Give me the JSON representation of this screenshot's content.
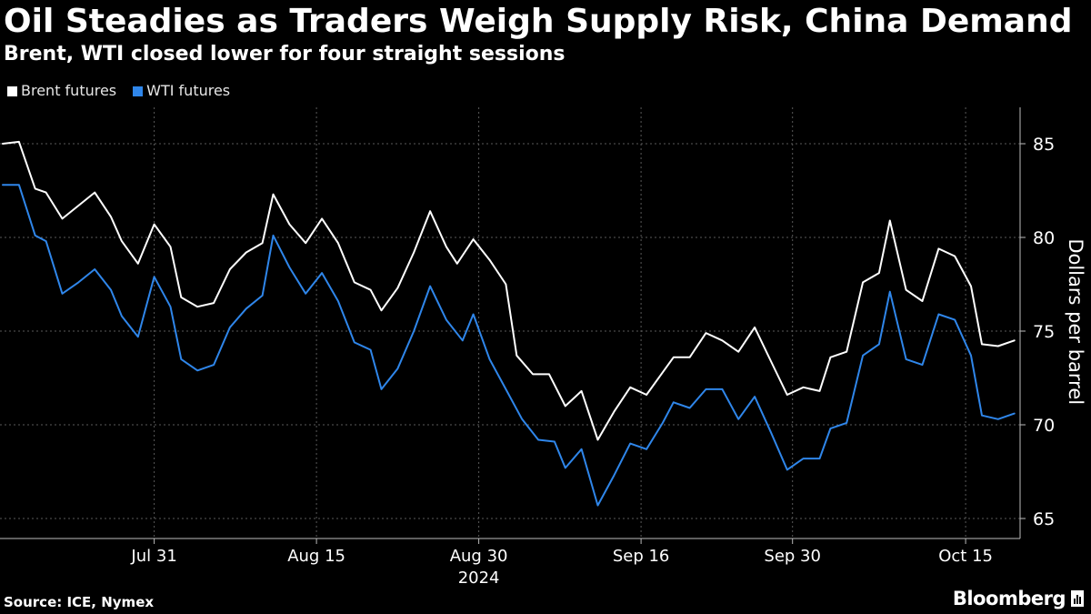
{
  "header": {
    "title": "Oil Steadies as Traders Weigh Supply Risk, China Demand",
    "subtitle": "Brent, WTI closed lower for four straight sessions"
  },
  "legend": [
    {
      "label": "Brent futures",
      "color": "#ffffff"
    },
    {
      "label": "WTI futures",
      "color": "#2f86ea"
    }
  ],
  "footer": {
    "source": "Source: ICE, Nymex",
    "brand": "Bloomberg"
  },
  "colors": {
    "background": "#000000",
    "grid": "#5a5a5a",
    "brent": "#ffffff",
    "wti": "#2f86ea"
  },
  "chart_data": {
    "type": "line",
    "title": "Oil Steadies as Traders Weigh Supply Risk, China Demand",
    "subtitle": "Brent, WTI closed lower for four straight sessions",
    "xlabel": "",
    "ylabel": "Dollars per barrel",
    "ylim": [
      64,
      87
    ],
    "y_ticks": [
      65,
      70,
      75,
      80,
      85
    ],
    "x_tick_labels": [
      "Jul 31",
      "Aug 15",
      "Aug 30",
      "Sep 16",
      "Sep 30",
      "Oct 15"
    ],
    "x_tick_index": [
      14,
      29,
      44,
      59,
      73,
      89
    ],
    "x_year_label": "2024",
    "x_year_index": 44,
    "x_count": 93,
    "grid": true,
    "legend_position": "top-left",
    "series": [
      {
        "name": "Brent futures",
        "color": "#ffffff",
        "points": [
          [
            0,
            85.0
          ],
          [
            1.5,
            85.1
          ],
          [
            3,
            82.6
          ],
          [
            4,
            82.4
          ],
          [
            5.5,
            81.0
          ],
          [
            8.5,
            82.4
          ],
          [
            10,
            81.1
          ],
          [
            11,
            79.8
          ],
          [
            12.5,
            78.6
          ],
          [
            14,
            80.7
          ],
          [
            15.5,
            79.5
          ],
          [
            16.5,
            76.8
          ],
          [
            18,
            76.3
          ],
          [
            19.5,
            76.5
          ],
          [
            21,
            78.3
          ],
          [
            22.5,
            79.2
          ],
          [
            24,
            79.7
          ],
          [
            25,
            82.3
          ],
          [
            26.5,
            80.7
          ],
          [
            28,
            79.7
          ],
          [
            29.5,
            81.0
          ],
          [
            31,
            79.7
          ],
          [
            32.5,
            77.6
          ],
          [
            34,
            77.2
          ],
          [
            35,
            76.1
          ],
          [
            36.5,
            77.3
          ],
          [
            38,
            79.2
          ],
          [
            39.5,
            81.4
          ],
          [
            41,
            79.5
          ],
          [
            42,
            78.6
          ],
          [
            43.5,
            79.9
          ],
          [
            45,
            78.8
          ],
          [
            46.5,
            77.5
          ],
          [
            47.5,
            73.7
          ],
          [
            49,
            72.7
          ],
          [
            50.5,
            72.7
          ],
          [
            52,
            71.0
          ],
          [
            53.5,
            71.8
          ],
          [
            55,
            69.2
          ],
          [
            56.5,
            70.7
          ],
          [
            58,
            72.0
          ],
          [
            59.5,
            71.6
          ],
          [
            61,
            72.8
          ],
          [
            62,
            73.6
          ],
          [
            63.5,
            73.6
          ],
          [
            65,
            74.9
          ],
          [
            66.5,
            74.5
          ],
          [
            68,
            73.9
          ],
          [
            69.5,
            75.2
          ],
          [
            71,
            73.4
          ],
          [
            72.5,
            71.6
          ],
          [
            74,
            72.0
          ],
          [
            75.5,
            71.8
          ],
          [
            76.5,
            73.6
          ],
          [
            78,
            73.9
          ],
          [
            79.5,
            77.6
          ],
          [
            81,
            78.1
          ],
          [
            82,
            80.9
          ],
          [
            83.5,
            77.2
          ],
          [
            85,
            76.6
          ],
          [
            86.5,
            79.4
          ],
          [
            88,
            79.0
          ],
          [
            89.5,
            77.4
          ],
          [
            90.5,
            74.3
          ],
          [
            92,
            74.2
          ],
          [
            93.5,
            74.5
          ]
        ]
      },
      {
        "name": "WTI futures",
        "color": "#2f86ea",
        "points": [
          [
            0,
            82.8
          ],
          [
            1.5,
            82.8
          ],
          [
            3,
            80.1
          ],
          [
            4,
            79.8
          ],
          [
            5.5,
            77.0
          ],
          [
            7,
            77.6
          ],
          [
            8.5,
            78.3
          ],
          [
            10,
            77.2
          ],
          [
            11,
            75.8
          ],
          [
            12.5,
            74.7
          ],
          [
            14,
            77.9
          ],
          [
            15.5,
            76.3
          ],
          [
            16.5,
            73.5
          ],
          [
            18,
            72.9
          ],
          [
            19.5,
            73.2
          ],
          [
            21,
            75.2
          ],
          [
            22.5,
            76.2
          ],
          [
            24,
            76.9
          ],
          [
            25,
            80.1
          ],
          [
            26.5,
            78.4
          ],
          [
            28,
            77.0
          ],
          [
            29.5,
            78.1
          ],
          [
            31,
            76.6
          ],
          [
            32.5,
            74.4
          ],
          [
            34,
            74.0
          ],
          [
            35,
            71.9
          ],
          [
            36.5,
            73.0
          ],
          [
            38,
            75.0
          ],
          [
            39.5,
            77.4
          ],
          [
            41,
            75.6
          ],
          [
            42.5,
            74.5
          ],
          [
            43.5,
            75.9
          ],
          [
            45,
            73.5
          ],
          [
            46.5,
            71.9
          ],
          [
            48,
            70.3
          ],
          [
            49.5,
            69.2
          ],
          [
            51,
            69.1
          ],
          [
            52,
            67.7
          ],
          [
            53.5,
            68.7
          ],
          [
            55,
            65.7
          ],
          [
            56.5,
            67.3
          ],
          [
            58,
            69.0
          ],
          [
            59.5,
            68.7
          ],
          [
            61,
            70.1
          ],
          [
            62,
            71.2
          ],
          [
            63.5,
            70.9
          ],
          [
            65,
            71.9
          ],
          [
            66.5,
            71.9
          ],
          [
            68,
            70.3
          ],
          [
            69.5,
            71.5
          ],
          [
            71,
            69.6
          ],
          [
            72.5,
            67.6
          ],
          [
            74,
            68.2
          ],
          [
            75.5,
            68.2
          ],
          [
            76.5,
            69.8
          ],
          [
            78,
            70.1
          ],
          [
            79.5,
            73.7
          ],
          [
            81,
            74.3
          ],
          [
            82,
            77.1
          ],
          [
            83.5,
            73.5
          ],
          [
            85,
            73.2
          ],
          [
            86.5,
            75.9
          ],
          [
            88,
            75.6
          ],
          [
            89.5,
            73.7
          ],
          [
            90.5,
            70.5
          ],
          [
            92,
            70.3
          ],
          [
            93.5,
            70.6
          ]
        ]
      }
    ]
  }
}
